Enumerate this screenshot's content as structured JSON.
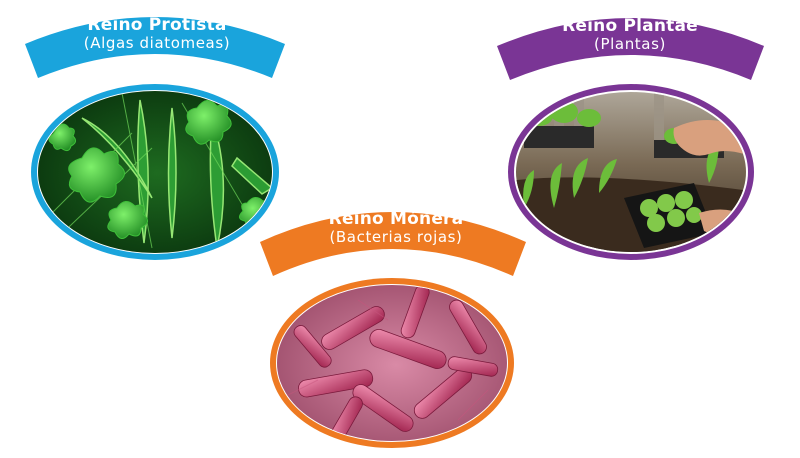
{
  "cards": {
    "protista": {
      "title": "Reino Protista",
      "subtitle": "(Algas diatomeas)",
      "banner_color": "#1aa4dc",
      "ring_color": "#1aa4dc",
      "image": "green-diatom-algae-microscopy"
    },
    "plantae": {
      "title": "Reino Plantae",
      "subtitle": "(Plantas)",
      "banner_color": "#7a3595",
      "ring_color": "#7a3595",
      "image": "hands-planting-lettuce-seedlings"
    },
    "monera": {
      "title": "Reino Mónera",
      "subtitle": "(Bacterias rojas)",
      "banner_color": "#ee7a22",
      "ring_color": "#ee7a22",
      "image": "red-rod-shaped-bacteria"
    }
  }
}
